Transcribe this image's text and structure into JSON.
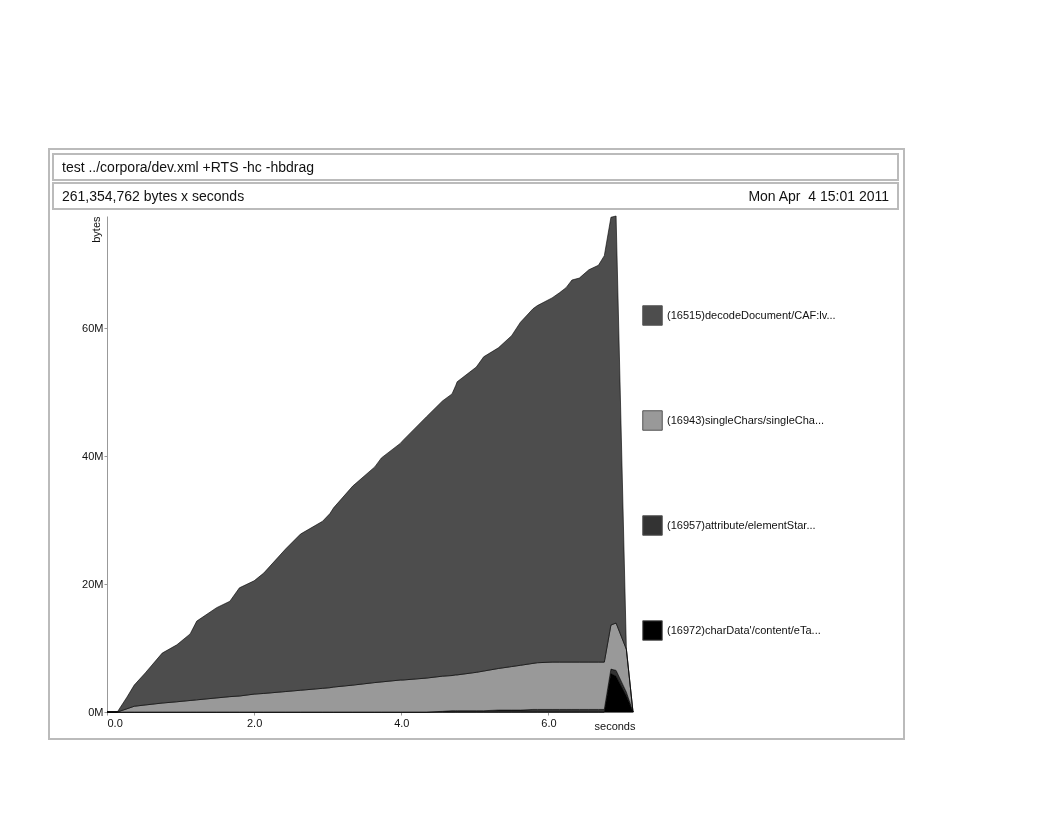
{
  "chart_data": {
    "type": "area",
    "title": "test ../corpora/dev.xml +RTS -hc -hbdrag",
    "subtitle": "261,354,762 bytes x seconds",
    "annotations": [
      "Mon Apr  4 15:01 2011"
    ],
    "xlabel": "seconds",
    "ylabel": "bytes",
    "stacked": true,
    "legend": "right",
    "x": [
      0,
      0.14,
      0.27,
      0.37,
      0.52,
      0.75,
      0.95,
      1.13,
      1.22,
      1.49,
      1.67,
      1.8,
      2.0,
      2.13,
      2.43,
      2.63,
      2.93,
      3.03,
      3.08,
      3.34,
      3.64,
      3.73,
      3.99,
      4.02,
      4.34,
      4.56,
      4.69,
      4.74,
      4.76,
      5.02,
      5.12,
      5.32,
      5.5,
      5.62,
      5.79,
      5.85,
      6.05,
      6.15,
      6.24,
      6.32,
      6.42,
      6.55,
      6.68,
      6.76,
      6.85,
      6.92,
      7.06,
      7.15
    ],
    "xlim": [
      0,
      7.15
    ],
    "xticks": [
      {
        "value": 0,
        "label": "0.0"
      },
      {
        "value": 2,
        "label": "2.0"
      },
      {
        "value": 4,
        "label": "4.0"
      },
      {
        "value": 6,
        "label": "6.0"
      }
    ],
    "ylim": [
      0,
      77.5
    ],
    "yticks": [
      {
        "value": 0,
        "label": "0M"
      },
      {
        "value": 20,
        "label": "20M"
      },
      {
        "value": 40,
        "label": "40M"
      },
      {
        "value": 60,
        "label": "60M"
      }
    ],
    "series": [
      {
        "name": "(16972)charData'/content/eTa...",
        "color": "#000000",
        "values": [
          0,
          0,
          0,
          0,
          0,
          0,
          0,
          0,
          0,
          0,
          0,
          0,
          0,
          0,
          0,
          0,
          0,
          0,
          0,
          0,
          0,
          0,
          0,
          0,
          0,
          0,
          0,
          0,
          0,
          0,
          0,
          0,
          0,
          0,
          0,
          0,
          0,
          0,
          0,
          0,
          0,
          0,
          0,
          0,
          6.0,
          5.6,
          2.5,
          0
        ]
      },
      {
        "name": "(16957)attribute/elementStar...",
        "color": "#333333",
        "values": [
          0,
          0,
          0,
          0,
          0,
          0,
          0,
          0,
          0,
          0,
          0,
          0,
          0,
          0,
          0,
          0,
          0,
          0,
          0,
          0,
          0,
          0,
          0,
          0,
          0,
          0.1,
          0.2,
          0.2,
          0.2,
          0.2,
          0.2,
          0.3,
          0.3,
          0.3,
          0.4,
          0.4,
          0.4,
          0.4,
          0.4,
          0.4,
          0.4,
          0.4,
          0.4,
          0.4,
          0.7,
          0.9,
          0.6,
          0
        ]
      },
      {
        "name": "(16943)singleChars/singleCha...",
        "color": "#999999",
        "values": [
          0,
          0,
          0.5,
          0.9,
          1.1,
          1.4,
          1.6,
          1.8,
          1.9,
          2.2,
          2.4,
          2.5,
          2.8,
          2.9,
          3.2,
          3.4,
          3.7,
          3.8,
          3.9,
          4.2,
          4.6,
          4.7,
          5.0,
          5.0,
          5.3,
          5.5,
          5.5,
          5.6,
          5.6,
          6.0,
          6.2,
          6.5,
          6.8,
          7.0,
          7.2,
          7.3,
          7.4,
          7.4,
          7.4,
          7.4,
          7.4,
          7.4,
          7.4,
          7.4,
          6.9,
          7.4,
          6.7,
          0
        ]
      },
      {
        "name": "(16515)decodeDocument/CAF:lv...",
        "color": "#4d4d4d",
        "values": [
          0,
          0,
          1.8,
          3.3,
          5.0,
          7.8,
          8.9,
          10.4,
          12.3,
          14.1,
          14.9,
          16.9,
          17.7,
          18.8,
          22.3,
          24.4,
          26.1,
          27.2,
          28.0,
          31.1,
          33.7,
          35.0,
          37.0,
          37.4,
          40.8,
          43.0,
          44.0,
          45.2,
          45.8,
          47.7,
          49.1,
          50.1,
          51.7,
          53.6,
          55.4,
          55.8,
          56.9,
          57.7,
          58.5,
          59.7,
          60.0,
          61.3,
          62.0,
          63.5,
          63.7,
          63.6,
          0,
          0
        ]
      }
    ]
  }
}
